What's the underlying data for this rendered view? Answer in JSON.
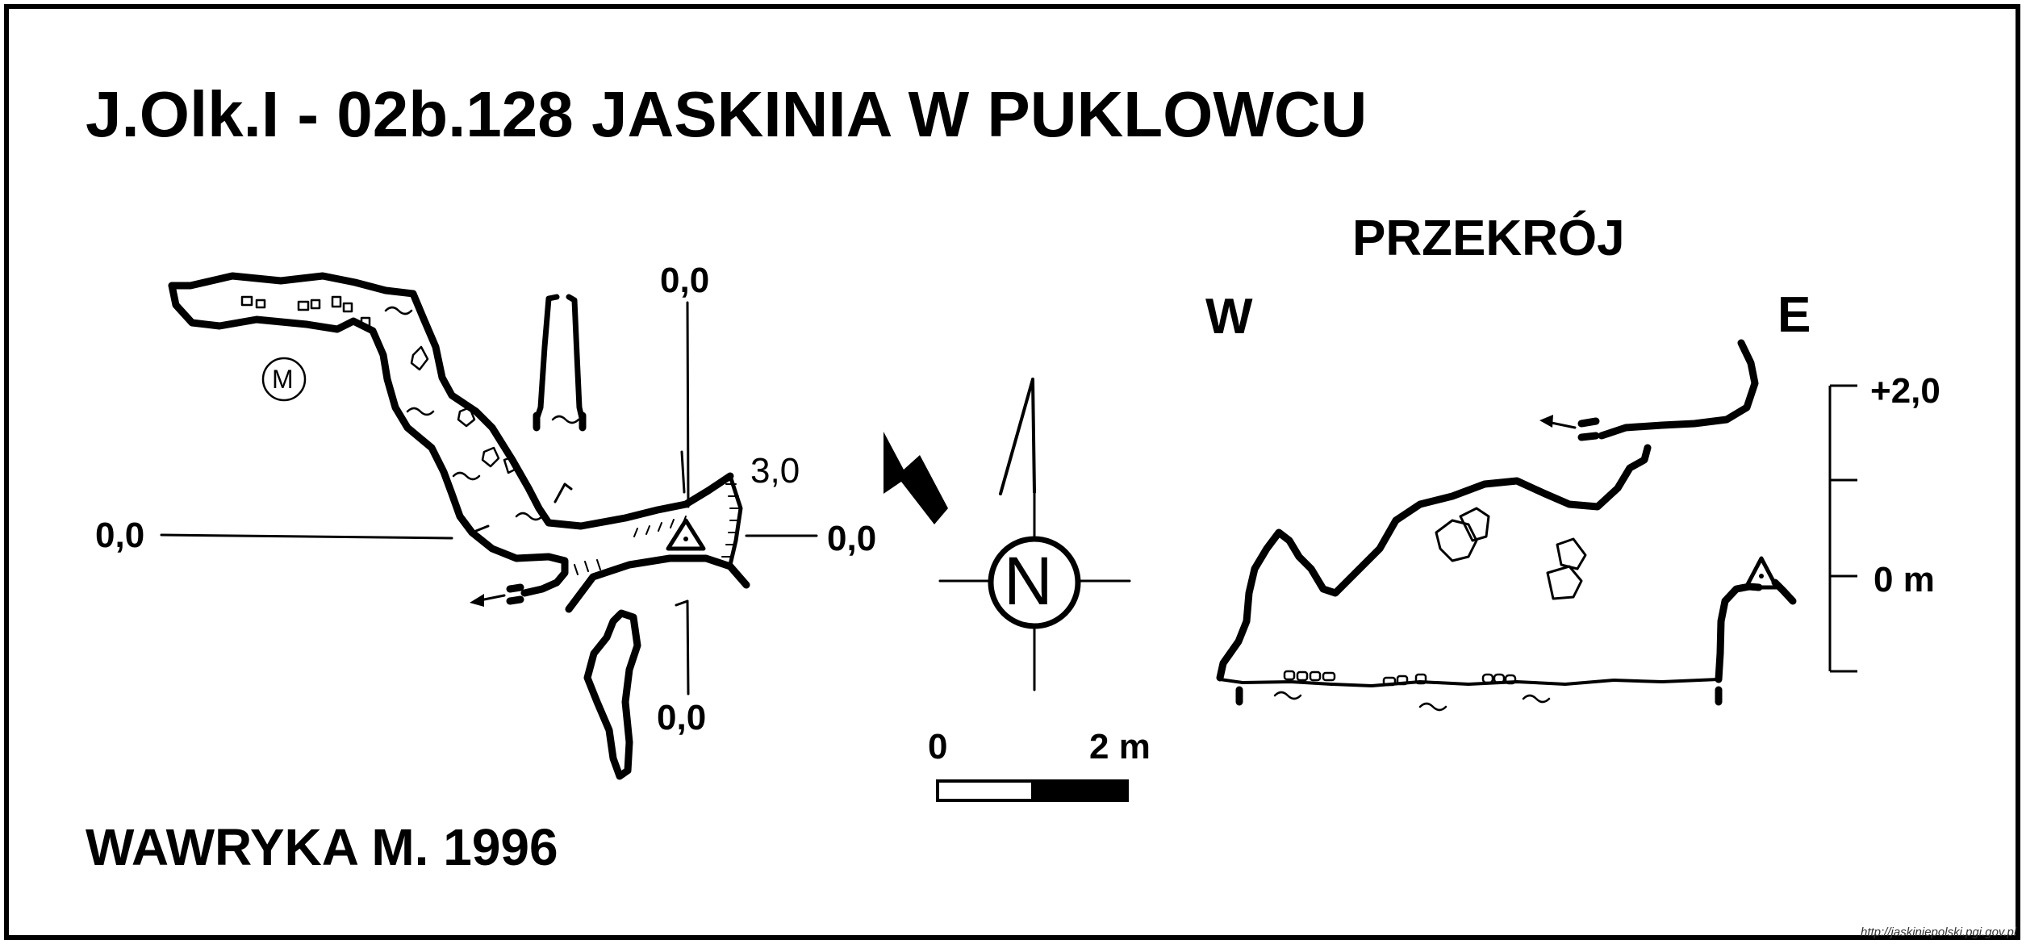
{
  "title": "J.Olk.I - 02b.128  JASKINIA W PUKLOWCU",
  "author": "WAWRYKA M. 1996",
  "cross_section": {
    "heading": "PRZEKRÓJ",
    "west": "W",
    "east": "E",
    "elev_top": "+2,0",
    "elev_zero": "0 m"
  },
  "plan": {
    "label_top": "0,0",
    "label_left": "0,0",
    "label_right": "0,0",
    "label_bottom": "0,0",
    "label_depth": "3,0",
    "marker_symbol": "M"
  },
  "north": "N",
  "scale_bar": {
    "start": "0",
    "end": "2 m"
  },
  "credit_url": "http://jaskiniepolski.pgi.gov.pl"
}
